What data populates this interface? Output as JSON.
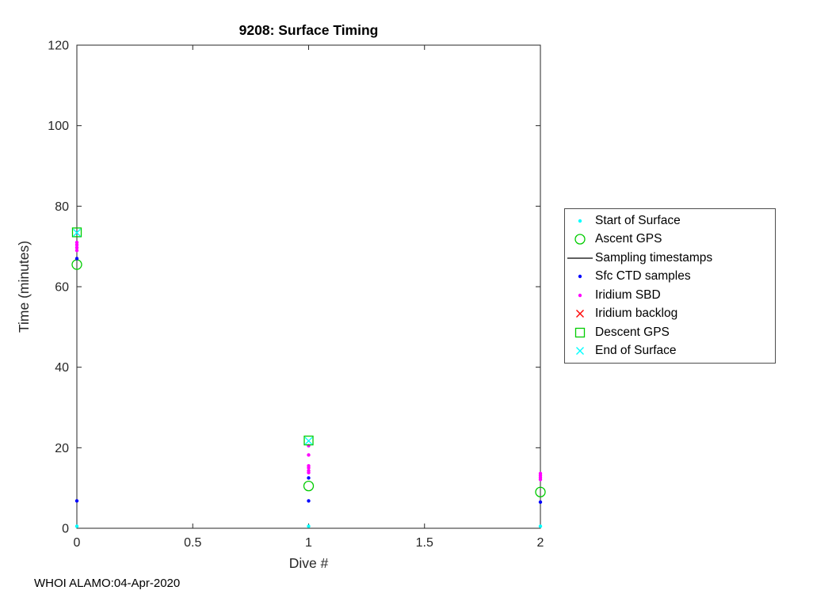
{
  "footer": "WHOI ALAMO:04-Apr-2020",
  "chart_data": {
    "type": "scatter",
    "title": "9208: Surface Timing",
    "xlabel": "Dive #",
    "ylabel": "Time (minutes)",
    "xlim": [
      0,
      2
    ],
    "ylim": [
      0,
      120
    ],
    "xticks": [
      0,
      0.5,
      1,
      1.5,
      2
    ],
    "yticks": [
      0,
      20,
      40,
      60,
      80,
      100,
      120
    ],
    "grid": false,
    "legend_position": "right-outside",
    "axis_color": "#262626",
    "series": [
      {
        "name": "Start of Surface",
        "marker": "dot",
        "color": "#00FFFF",
        "points": [
          [
            0,
            0.5
          ],
          [
            1,
            0.5
          ],
          [
            2,
            0.5
          ]
        ]
      },
      {
        "name": "Ascent GPS",
        "marker": "circle-open",
        "color": "#00CC00",
        "points": [
          [
            0,
            65.5
          ],
          [
            1,
            10.5
          ],
          [
            2,
            9
          ]
        ]
      },
      {
        "name": "Sampling timestamps",
        "marker": "line",
        "color": "#000000",
        "points": []
      },
      {
        "name": "Sfc CTD samples",
        "marker": "dot",
        "color": "#0000FF",
        "points": [
          [
            0,
            6.8
          ],
          [
            0,
            67
          ],
          [
            1,
            6.8
          ],
          [
            1,
            12.5
          ],
          [
            2,
            6.5
          ]
        ]
      },
      {
        "name": "Iridium SBD",
        "marker": "dot",
        "color": "#FF00FF",
        "points": [
          [
            0,
            69
          ],
          [
            0,
            69.7
          ],
          [
            0,
            70.4
          ],
          [
            0,
            71
          ],
          [
            1,
            13.8
          ],
          [
            1,
            14.3
          ],
          [
            1,
            15
          ],
          [
            1,
            15.5
          ],
          [
            1,
            18.2
          ],
          [
            1,
            20.5
          ],
          [
            2,
            12.1
          ],
          [
            2,
            12.6
          ],
          [
            2,
            13.1
          ],
          [
            2,
            13.6
          ]
        ]
      },
      {
        "name": "Iridium backlog",
        "marker": "x",
        "color": "#FF0000",
        "points": []
      },
      {
        "name": "Descent GPS",
        "marker": "square-open",
        "color": "#00CC00",
        "points": [
          [
            0,
            73.5
          ],
          [
            1,
            21.8
          ]
        ]
      },
      {
        "name": "End of Surface",
        "marker": "x",
        "color": "#00FFFF",
        "points": [
          [
            0,
            73.4
          ],
          [
            1,
            21.7
          ]
        ]
      }
    ]
  }
}
